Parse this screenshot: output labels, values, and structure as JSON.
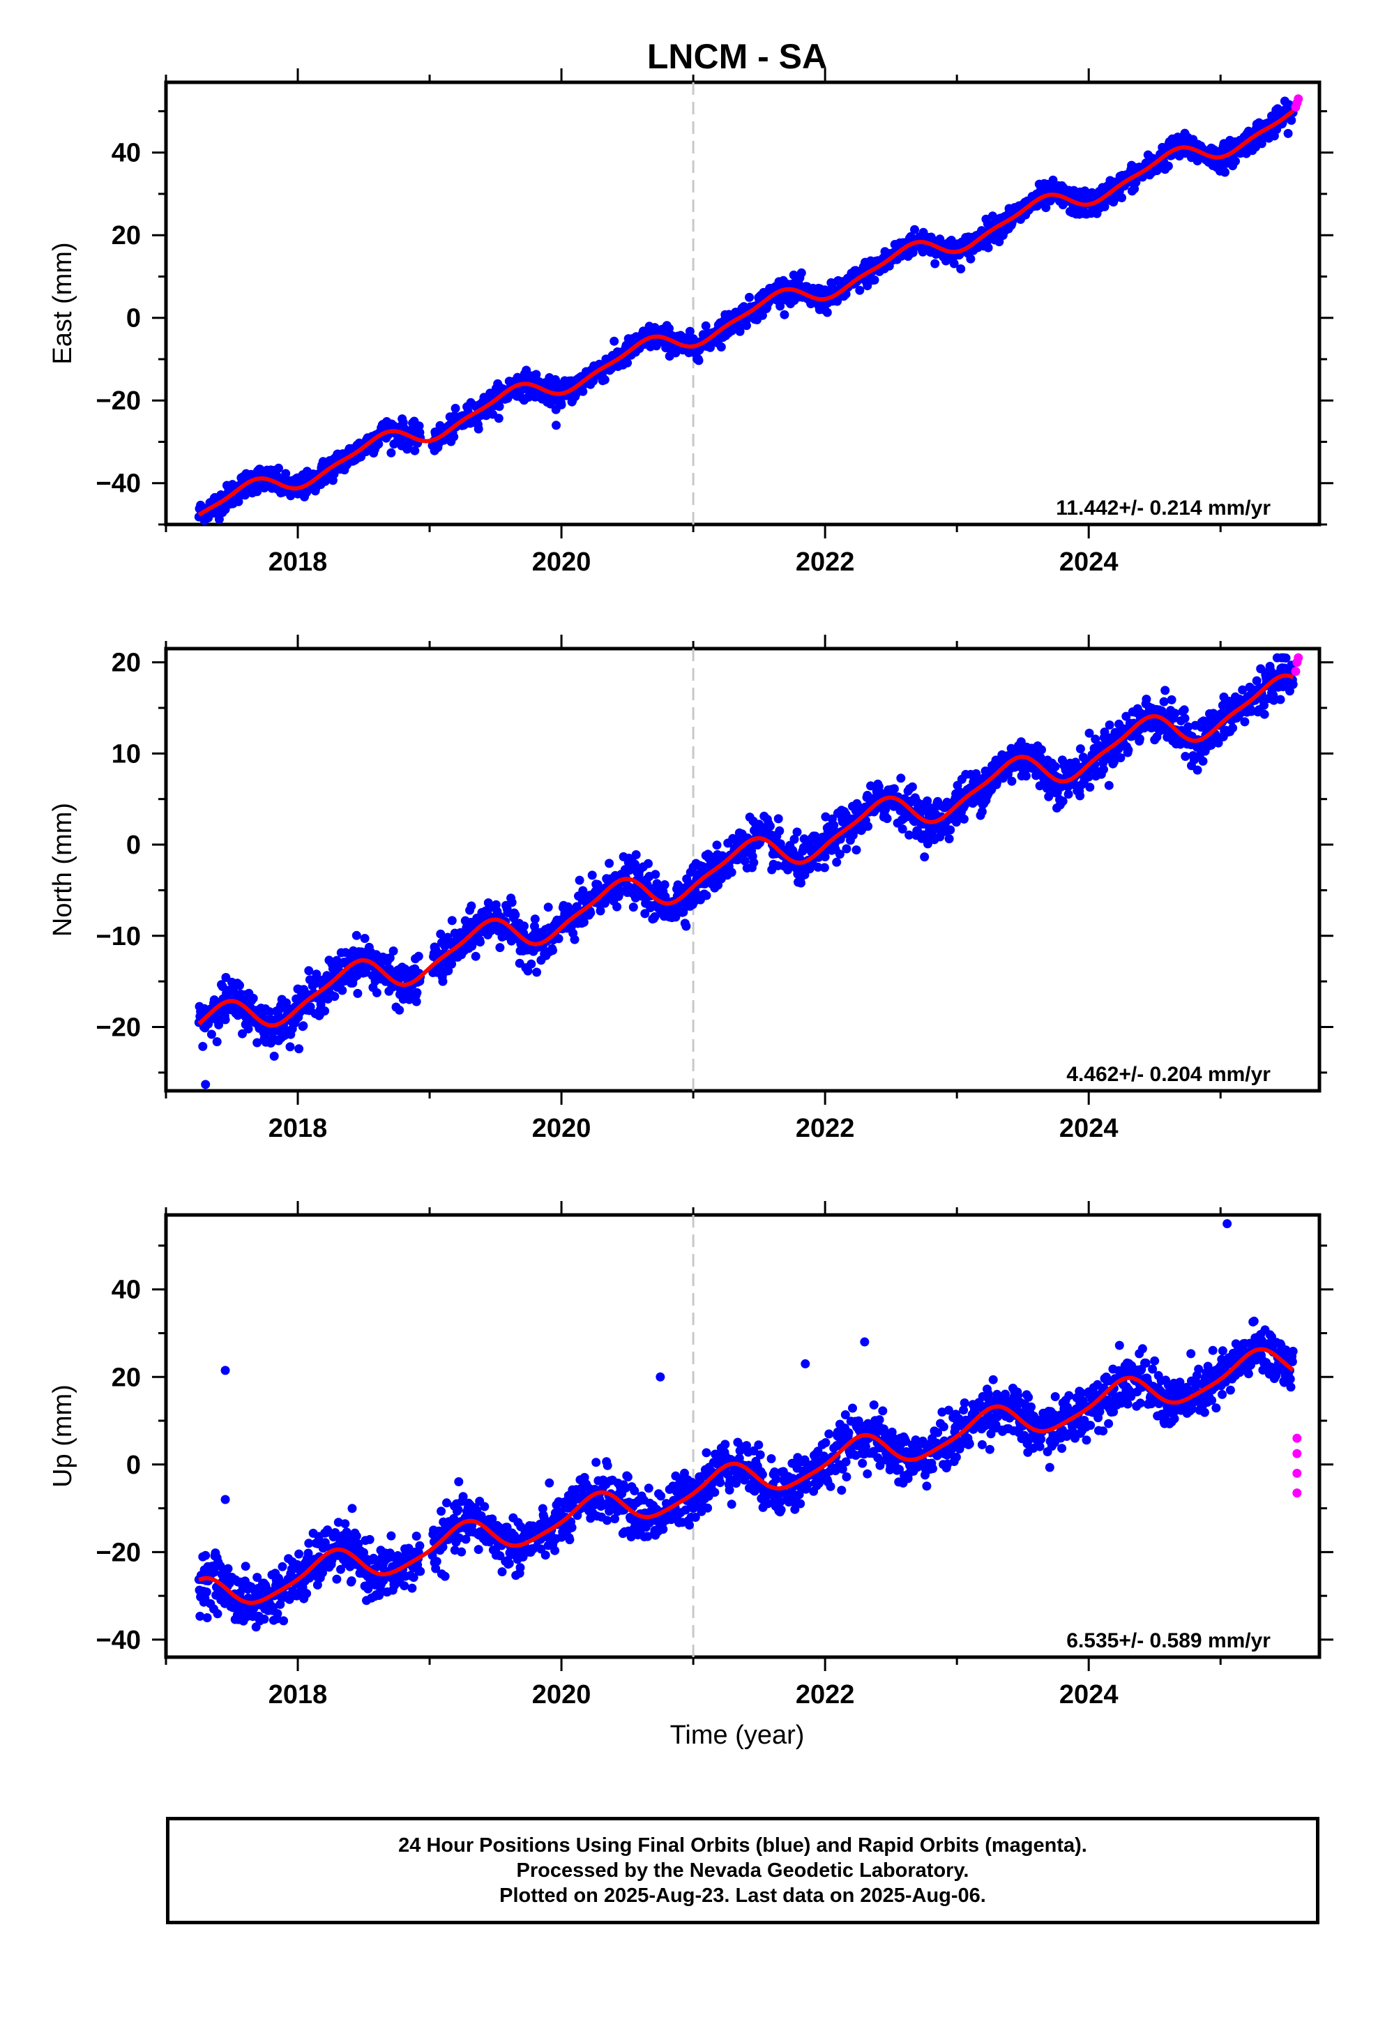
{
  "title": "LNCM - SA",
  "colors": {
    "final_orbits": "#0000ff",
    "rapid_orbits": "#ff00ff",
    "model": "#ff0000",
    "break_line": "#c8c8c8"
  },
  "x_axis_label": "Time (year)",
  "chart_data": [
    {
      "type": "scatter",
      "component": "east",
      "ylabel": "East (mm)",
      "xlim": [
        2017.0,
        2025.75
      ],
      "ylim": [
        -50,
        57
      ],
      "xticks": [
        2018,
        2020,
        2022,
        2024
      ],
      "xtick_labels": [
        "2018",
        "2020",
        "2022",
        "2024"
      ],
      "yticks": [
        -40,
        -20,
        0,
        20,
        40
      ],
      "ytick_labels": [
        "−40",
        "−20",
        "0",
        "20",
        "40"
      ],
      "rate_label": "11.442+/- 0.214 mm/yr",
      "break_epoch": 2021.0,
      "trend": {
        "t0": 2017.2,
        "y0": -47.5,
        "rate_mm_per_yr": 11.442
      },
      "seasonal": {
        "annual_amp": 2.6,
        "annual_phase": 0.35,
        "semiannual_amp": 0.8,
        "semiannual_phase": 0.1
      },
      "noise_sd": 1.5,
      "data_span": [
        2017.25,
        2025.55
      ],
      "gaps": [
        [
          2018.93,
          2019.02
        ]
      ],
      "series": [
        {
          "name": "Final Orbits (blue)",
          "values": "dense daily solutions along the model curve"
        },
        {
          "name": "Rapid Orbits (magenta)",
          "x": [
            2025.57,
            2025.58,
            2025.59
          ],
          "y": [
            51,
            52,
            53
          ]
        }
      ],
      "outliers": [
        [
          2019.96,
          -26
        ]
      ]
    },
    {
      "type": "scatter",
      "component": "north",
      "ylabel": "North (mm)",
      "xlim": [
        2017.0,
        2025.75
      ],
      "ylim": [
        -27,
        21.5
      ],
      "xticks": [
        2018,
        2020,
        2022,
        2024
      ],
      "xtick_labels": [
        "2018",
        "2020",
        "2022",
        "2024"
      ],
      "yticks": [
        -20,
        -10,
        0,
        10,
        20
      ],
      "ytick_labels": [
        "−20",
        "−10",
        "0",
        "10",
        "20"
      ],
      "rate_label": "4.462+/- 0.204 mm/yr",
      "break_epoch": 2021.0,
      "trend": {
        "t0": 2017.2,
        "y0": -20.5,
        "rate_mm_per_yr": 4.462
      },
      "seasonal": {
        "annual_amp": 1.9,
        "annual_phase": 0.15,
        "semiannual_amp": 0.5,
        "semiannual_phase": 0.4
      },
      "noise_sd": 1.2,
      "data_span": [
        2017.25,
        2025.55
      ],
      "gaps": [
        [
          2018.93,
          2019.02
        ]
      ],
      "series": [
        {
          "name": "Final Orbits (blue)",
          "values": "dense daily solutions along the model curve"
        },
        {
          "name": "Rapid Orbits (magenta)",
          "x": [
            2025.57,
            2025.58,
            2025.59
          ],
          "y": [
            19,
            20,
            20.5
          ]
        }
      ],
      "outliers": [
        [
          2017.3,
          -26.3
        ],
        [
          2019.1,
          -15
        ]
      ]
    },
    {
      "type": "scatter",
      "component": "up",
      "ylabel": "Up (mm)",
      "xlim": [
        2017.0,
        2025.75
      ],
      "ylim": [
        -44,
        57
      ],
      "xticks": [
        2018,
        2020,
        2022,
        2024
      ],
      "xtick_labels": [
        "2018",
        "2020",
        "2022",
        "2024"
      ],
      "yticks": [
        -40,
        -20,
        0,
        20,
        40
      ],
      "ytick_labels": [
        "−40",
        "−20",
        "0",
        "20",
        "40"
      ],
      "xlabel": "Time (year)",
      "rate_label": "6.535+/- 0.589 mm/yr",
      "break_epoch": 2021.0,
      "trend": {
        "t0": 2017.2,
        "y0": -31.0,
        "rate_mm_per_yr": 6.535
      },
      "seasonal": {
        "annual_amp": 3.8,
        "annual_phase": 0.0,
        "semiannual_amp": 0.8,
        "semiannual_phase": 0.2
      },
      "noise_sd": 3.0,
      "data_span": [
        2017.25,
        2025.55
      ],
      "gaps": [
        [
          2018.93,
          2019.02
        ]
      ],
      "series": [
        {
          "name": "Final Orbits (blue)",
          "values": "dense daily solutions along the model curve"
        },
        {
          "name": "Rapid Orbits (magenta)",
          "x": [
            2025.58,
            2025.58,
            2025.58,
            2025.58
          ],
          "y": [
            6,
            2.5,
            -2,
            -6.5
          ]
        }
      ],
      "outliers": [
        [
          2017.45,
          21.5
        ],
        [
          2017.45,
          -8
        ],
        [
          2020.75,
          20
        ],
        [
          2025.05,
          55
        ],
        [
          2021.85,
          23
        ],
        [
          2022.3,
          28
        ]
      ]
    }
  ],
  "footer": {
    "line1": "24 Hour Positions Using Final Orbits (blue) and Rapid Orbits (magenta).",
    "line2": "Processed by the Nevada Geodetic Laboratory.",
    "line3": "Plotted on 2025-Aug-23. Last data on 2025-Aug-06."
  }
}
